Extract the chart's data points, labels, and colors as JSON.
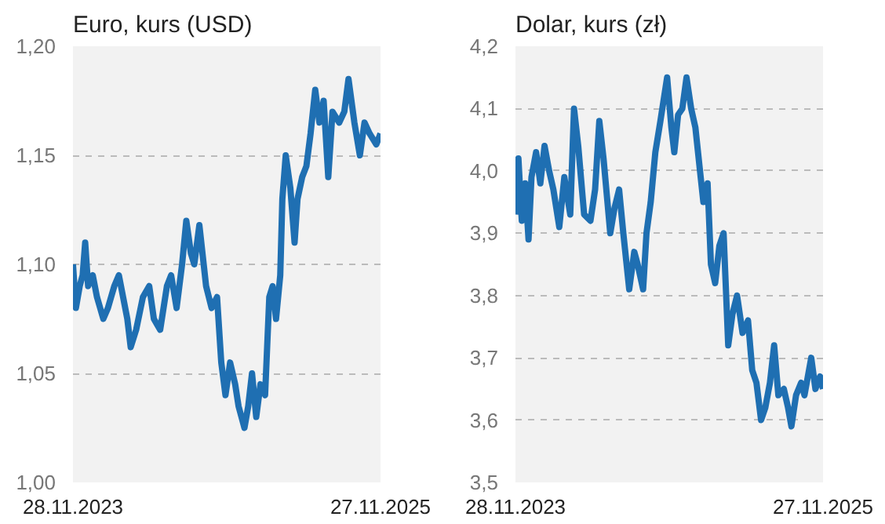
{
  "chart_data": [
    {
      "type": "line",
      "title": "Euro, kurs (USD)",
      "grid": "y",
      "line_style": "solid",
      "marker": "none",
      "xlim": [
        "2023-11-28",
        "2025-11-27"
      ],
      "xticks": [
        {
          "value": "2023-11-28",
          "label": "28.11.2023"
        },
        {
          "value": "2025-11-27",
          "label": "27.11.2025"
        }
      ],
      "ylim": [
        1.0,
        1.2
      ],
      "yticks": [
        {
          "value": 1.0,
          "label": "1,00"
        },
        {
          "value": 1.05,
          "label": "1,05"
        },
        {
          "value": 1.1,
          "label": "1,10"
        },
        {
          "value": 1.15,
          "label": "1,15"
        },
        {
          "value": 1.2,
          "label": "1,20"
        }
      ],
      "series": [
        {
          "color": "#1f6fb2",
          "x": [
            "2023-11-28",
            "2023-12-05",
            "2023-12-14",
            "2023-12-21",
            "2023-12-27",
            "2024-01-03",
            "2024-01-14",
            "2024-01-24",
            "2024-02-08",
            "2024-02-19",
            "2024-03-05",
            "2024-03-16",
            "2024-03-26",
            "2024-04-05",
            "2024-04-13",
            "2024-04-26",
            "2024-05-12",
            "2024-05-27",
            "2024-06-07",
            "2024-06-22",
            "2024-07-08",
            "2024-07-18",
            "2024-07-31",
            "2024-08-13",
            "2024-08-23",
            "2024-09-03",
            "2024-09-11",
            "2024-09-23",
            "2024-10-09",
            "2024-10-22",
            "2024-11-04",
            "2024-11-14",
            "2024-11-24",
            "2024-12-05",
            "2024-12-17",
            "2024-12-25",
            "2025-01-08",
            "2025-01-17",
            "2025-01-26",
            "2025-02-05",
            "2025-02-15",
            "2025-02-26",
            "2025-03-08",
            "2025-03-16",
            "2025-03-24",
            "2025-04-03",
            "2025-04-08",
            "2025-04-16",
            "2025-04-27",
            "2025-05-07",
            "2025-05-14",
            "2025-05-25",
            "2025-06-04",
            "2025-06-14",
            "2025-06-25",
            "2025-07-05",
            "2025-07-15",
            "2025-07-26",
            "2025-08-05",
            "2025-08-21",
            "2025-09-02",
            "2025-09-12",
            "2025-09-26",
            "2025-10-09",
            "2025-10-20",
            "2025-11-01",
            "2025-11-17",
            "2025-11-27"
          ],
          "values": [
            1.1,
            1.08,
            1.09,
            1.095,
            1.11,
            1.09,
            1.095,
            1.085,
            1.075,
            1.08,
            1.09,
            1.095,
            1.085,
            1.075,
            1.062,
            1.07,
            1.085,
            1.09,
            1.075,
            1.07,
            1.09,
            1.095,
            1.08,
            1.1,
            1.12,
            1.105,
            1.1,
            1.118,
            1.09,
            1.08,
            1.085,
            1.055,
            1.04,
            1.055,
            1.045,
            1.035,
            1.025,
            1.035,
            1.05,
            1.03,
            1.045,
            1.04,
            1.085,
            1.09,
            1.075,
            1.095,
            1.13,
            1.15,
            1.135,
            1.11,
            1.13,
            1.14,
            1.145,
            1.16,
            1.18,
            1.165,
            1.175,
            1.14,
            1.17,
            1.165,
            1.17,
            1.185,
            1.165,
            1.15,
            1.165,
            1.16,
            1.155,
            1.16
          ]
        }
      ]
    },
    {
      "type": "line",
      "title": "Dolar, kurs (zł)",
      "grid": "y",
      "line_style": "solid",
      "marker": "none",
      "xlim": [
        "2023-11-28",
        "2025-11-27"
      ],
      "xticks": [
        {
          "value": "2023-11-28",
          "label": "28.11.2023"
        },
        {
          "value": "2025-11-27",
          "label": "27.11.2025"
        }
      ],
      "ylim": [
        3.5,
        4.2
      ],
      "yticks": [
        {
          "value": 3.5,
          "label": "3,5"
        },
        {
          "value": 3.6,
          "label": "3,6"
        },
        {
          "value": 3.7,
          "label": "3,7"
        },
        {
          "value": 3.8,
          "label": "3,8"
        },
        {
          "value": 3.9,
          "label": "3,9"
        },
        {
          "value": 4.0,
          "label": "4,0"
        },
        {
          "value": 4.1,
          "label": "4,1"
        },
        {
          "value": 4.2,
          "label": "4,2"
        }
      ],
      "series": [
        {
          "color": "#1f6fb2",
          "x": [
            "2023-11-28",
            "2023-12-05",
            "2023-12-13",
            "2023-12-21",
            "2023-12-29",
            "2024-01-05",
            "2024-01-16",
            "2024-01-26",
            "2024-02-05",
            "2024-02-16",
            "2024-02-26",
            "2024-03-11",
            "2024-03-23",
            "2024-04-06",
            "2024-04-15",
            "2024-04-25",
            "2024-05-09",
            "2024-05-24",
            "2024-06-04",
            "2024-06-14",
            "2024-06-24",
            "2024-07-10",
            "2024-07-20",
            "2024-07-31",
            "2024-08-10",
            "2024-08-24",
            "2024-09-05",
            "2024-09-13",
            "2024-09-26",
            "2024-10-04",
            "2024-10-14",
            "2024-10-25",
            "2024-11-06",
            "2024-11-22",
            "2024-12-02",
            "2024-12-09",
            "2024-12-18",
            "2024-12-28",
            "2025-01-07",
            "2025-01-18",
            "2025-01-28",
            "2025-02-08",
            "2025-02-16",
            "2025-02-26",
            "2025-03-06",
            "2025-03-16",
            "2025-03-26",
            "2025-04-05",
            "2025-04-16",
            "2025-04-26",
            "2025-05-07",
            "2025-05-20",
            "2025-06-02",
            "2025-06-12",
            "2025-06-22",
            "2025-07-03",
            "2025-07-13",
            "2025-07-24",
            "2025-08-03",
            "2025-08-13",
            "2025-08-26",
            "2025-09-05",
            "2025-09-13",
            "2025-09-24",
            "2025-10-06",
            "2025-10-14",
            "2025-10-30",
            "2025-11-09",
            "2025-11-20",
            "2025-11-27"
          ],
          "values": [
            3.93,
            4.02,
            3.92,
            3.98,
            3.89,
            3.99,
            4.03,
            3.98,
            4.04,
            4.0,
            3.97,
            3.91,
            3.99,
            3.93,
            4.1,
            4.04,
            3.93,
            3.92,
            3.97,
            4.08,
            4.02,
            3.9,
            3.94,
            3.97,
            3.9,
            3.81,
            3.87,
            3.85,
            3.81,
            3.9,
            3.95,
            4.03,
            4.08,
            4.15,
            4.07,
            4.03,
            4.09,
            4.1,
            4.15,
            4.1,
            4.07,
            4.0,
            3.95,
            3.98,
            3.85,
            3.82,
            3.88,
            3.9,
            3.72,
            3.77,
            3.8,
            3.74,
            3.76,
            3.68,
            3.66,
            3.6,
            3.62,
            3.66,
            3.72,
            3.64,
            3.65,
            3.62,
            3.59,
            3.64,
            3.66,
            3.64,
            3.7,
            3.65,
            3.67,
            3.65
          ]
        }
      ]
    }
  ]
}
